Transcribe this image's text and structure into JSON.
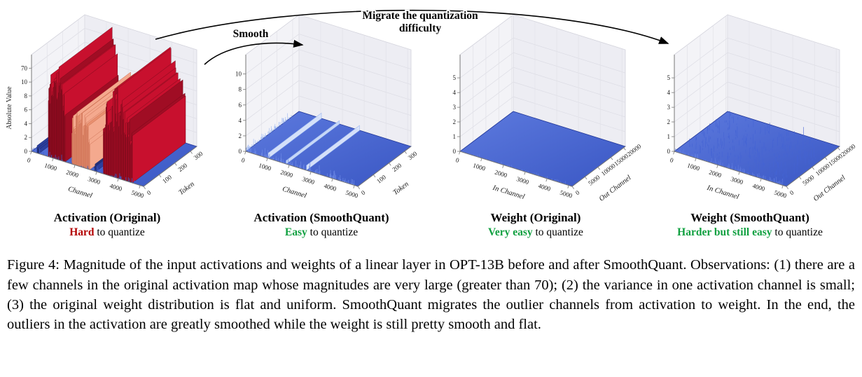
{
  "caption": {
    "label": "Figure 4:",
    "text": "Magnitude of the input activations and weights of a linear layer in OPT-13B before and after SmoothQuant. Observations: (1) there are a few channels in the original activation map whose magnitudes are very large (greater than 70); (2) the variance in one activation channel is small; (3) the original weight distribution is flat and uniform. SmoothQuant migrates the outlier channels from activation to weight. In the end, the outliers in the activation are greatly smoothed while the weight is still pretty smooth and flat."
  },
  "annotations": {
    "smooth": "Smooth",
    "migrate_line1": "Migrate the quantization",
    "migrate_line2": "difficulty"
  },
  "colors": {
    "hard_red": "#b30000",
    "easy_green": "#10a040",
    "surface_blue": "#3a57c4",
    "outlier_red": "#c8102e",
    "outlier_salmon": "#f4a98e"
  },
  "chart_data": [
    {
      "type": "surface3d",
      "title": "Activation (Original)",
      "subtitle_em": "Hard",
      "subtitle_rest": " to quantize",
      "subtitle_color_key": "hard_red",
      "xlabel": "Channel",
      "ylabel": "Token",
      "zlabel": "Absolute Value",
      "xticks": [
        "0",
        "1000",
        "2000",
        "3000",
        "4000",
        "5000"
      ],
      "yticks": [
        "0",
        "100",
        "200",
        "300"
      ],
      "zticks": [
        "0",
        "2",
        "4",
        "6",
        "8",
        "10",
        "70"
      ],
      "z_axis_note": "broken z-axis; outlier channels exceed 70 while bulk stays below 10",
      "surface": {
        "top": "#5d7ade",
        "bottom": "#3a57c4",
        "edge": "#23399a"
      },
      "features": {
        "wall_clusters": [
          {
            "channel_from": 0.05,
            "channel_to": 0.065,
            "count": 4,
            "hmin": 0.05,
            "hmax": 0.12,
            "fill": "#2b3f9e",
            "fill2": "#22307c",
            "stroke": "#1a2560"
          },
          {
            "channel_from": 0.15,
            "channel_to": 0.3,
            "count": 42,
            "hmin": 0.62,
            "hmax": 1.0,
            "fill": "#c8102e",
            "fill2": "#a00d24",
            "stroke": "#6e0a19"
          },
          {
            "channel_from": 0.36,
            "channel_to": 0.52,
            "count": 40,
            "hmin": 0.34,
            "hmax": 0.6,
            "fill": "#f4a98e",
            "fill2": "#e8906f",
            "stroke": "#c86a4d"
          },
          {
            "channel_from": 0.56,
            "channel_to": 0.575,
            "count": 3,
            "hmin": 0.05,
            "hmax": 0.1,
            "fill": "#2b3f9e",
            "fill2": "#22307c",
            "stroke": "#1a2560"
          },
          {
            "channel_from": 0.64,
            "channel_to": 0.9,
            "count": 55,
            "hmin": 0.45,
            "hmax": 0.95,
            "fill": "#c8102e",
            "fill2": "#a00d24",
            "stroke": "#6e0a19"
          }
        ],
        "front_edge_noise": {
          "count": 70,
          "hmax": 0.06,
          "color": "#3d5ccc"
        }
      }
    },
    {
      "type": "surface3d",
      "title": "Activation (SmoothQuant)",
      "subtitle_em": "Easy",
      "subtitle_rest": " to quantize",
      "subtitle_color_key": "easy_green",
      "xlabel": "Channel",
      "ylabel": "Token",
      "zlabel": "",
      "xticks": [
        "0",
        "1000",
        "2000",
        "3000",
        "4000",
        "5000"
      ],
      "yticks": [
        "0",
        "100",
        "200",
        "300"
      ],
      "zticks": [
        "0",
        "2",
        "4",
        "6",
        "8",
        "10"
      ],
      "surface": {
        "top": "#5d7ade",
        "bottom": "#3a57c4",
        "edge": "#23399a"
      },
      "features": {
        "ridges": [
          {
            "channel": 0.2,
            "h": 0.055,
            "fill": "#dbe6fb",
            "stroke": "#9db8ef"
          },
          {
            "channel": 0.36,
            "h": 0.035,
            "fill": "#ccdcf8",
            "stroke": "#9db8ef"
          },
          {
            "channel": 0.54,
            "h": 0.05,
            "fill": "#dbe6fb",
            "stroke": "#9db8ef"
          }
        ],
        "front_edge_noise": {
          "count": 140,
          "hmax": 0.1,
          "color": "#6b88e4"
        },
        "left_edge_noise": {
          "count": 90,
          "hmax": 0.07,
          "color": "#a8c0f2"
        }
      }
    },
    {
      "type": "surface3d",
      "title": "Weight (Original)",
      "subtitle_em": "Very easy",
      "subtitle_rest": " to quantize",
      "subtitle_color_key": "easy_green",
      "xlabel": "In Channel",
      "ylabel": "Out Channel",
      "zlabel": "",
      "xticks": [
        "0",
        "1000",
        "2000",
        "3000",
        "4000",
        "5000"
      ],
      "yticks": [
        "0",
        "5000",
        "10000",
        "15000",
        "20000"
      ],
      "zticks": [
        "0",
        "1",
        "2",
        "3",
        "4",
        "5"
      ],
      "surface": {
        "top": "#5d7ade",
        "bottom": "#3a57c4",
        "edge": "#23399a"
      },
      "features": {
        "front_edge_noise": {
          "count": 60,
          "hmax": 0.03,
          "color": "#5d7ade"
        }
      }
    },
    {
      "type": "surface3d",
      "title": "Weight (SmoothQuant)",
      "subtitle_em": "Harder but still easy",
      "subtitle_rest": " to quantize",
      "subtitle_color_key": "easy_green",
      "xlabel": "In Channel",
      "ylabel": "Out Channel",
      "zlabel": "",
      "xticks": [
        "0",
        "1000",
        "2000",
        "3000",
        "4000",
        "5000"
      ],
      "yticks": [
        "0",
        "5000",
        "10000",
        "15000",
        "20000"
      ],
      "zticks": [
        "0",
        "1",
        "2",
        "3",
        "4",
        "5"
      ],
      "surface": {
        "top": "#5d7ade",
        "bottom": "#3a57c4",
        "edge": "#23399a"
      },
      "features": {
        "scatter_spikes": {
          "count": 260,
          "hmax": 0.13,
          "color": "#4463d4"
        },
        "front_edge_noise": {
          "count": 120,
          "hmax": 0.08,
          "color": "#5d7ade"
        }
      }
    }
  ]
}
